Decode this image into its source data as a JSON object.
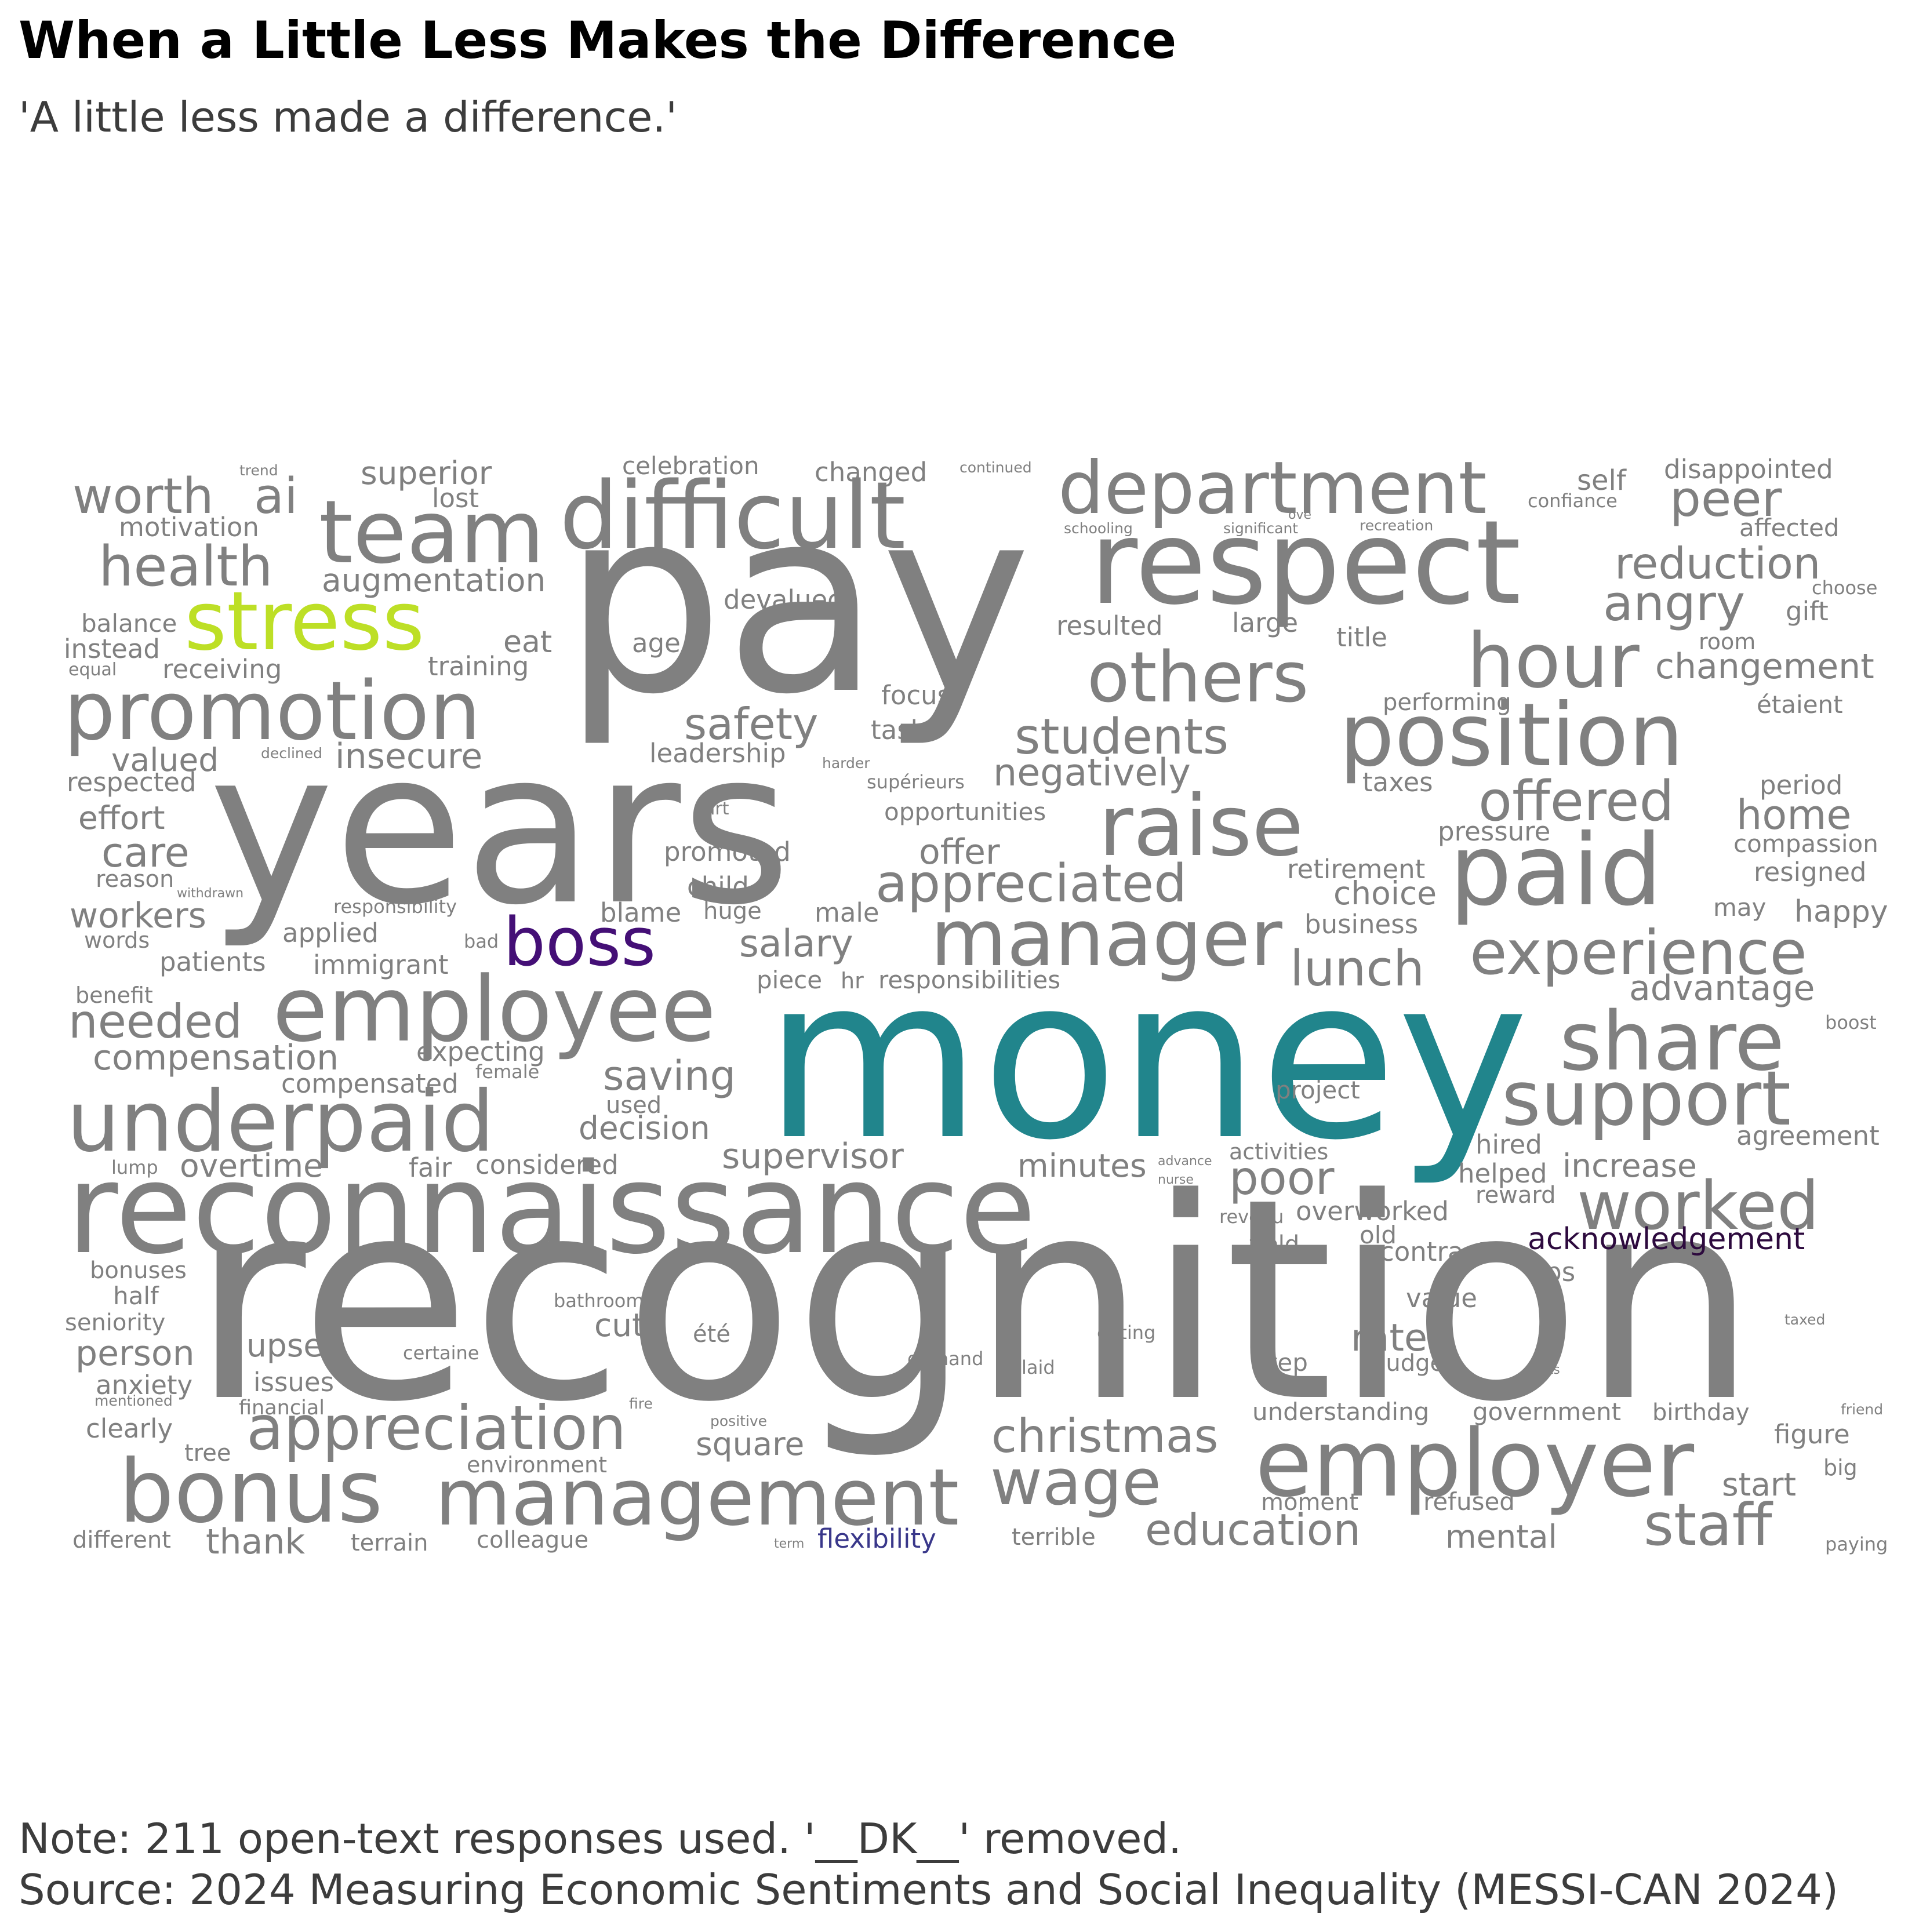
{
  "title": "When a Little Less Makes the Difference",
  "subtitle": "'A little less made a difference.'",
  "note": "Note: 211 open-text responses used. '__DK__' removed.",
  "source": "Source: 2024 Measuring Economic Sentiments and Social Inequality (MESSI-CAN 2024)",
  "chart_data": {
    "type": "wordcloud",
    "default_color": "#808080",
    "words": [
      {
        "text": "recognition",
        "weight": 100
      },
      {
        "text": "pay",
        "weight": 92
      },
      {
        "text": "years",
        "weight": 88
      },
      {
        "text": "money",
        "weight": 86,
        "color": "#21858c"
      },
      {
        "text": "reconnaissance",
        "weight": 54
      },
      {
        "text": "respect",
        "weight": 50
      },
      {
        "text": "difficult",
        "weight": 38
      },
      {
        "text": "employee",
        "weight": 40
      },
      {
        "text": "underpaid",
        "weight": 38
      },
      {
        "text": "position",
        "weight": 38
      },
      {
        "text": "paid",
        "weight": 44
      },
      {
        "text": "team",
        "weight": 36
      },
      {
        "text": "promotion",
        "weight": 36
      },
      {
        "text": "raise",
        "weight": 36
      },
      {
        "text": "manager",
        "weight": 34
      },
      {
        "text": "department",
        "weight": 32
      },
      {
        "text": "employer",
        "weight": 36
      },
      {
        "text": "management",
        "weight": 33
      },
      {
        "text": "bonus",
        "weight": 36
      },
      {
        "text": "support",
        "weight": 32
      },
      {
        "text": "share",
        "weight": 32
      },
      {
        "text": "others",
        "weight": 30
      },
      {
        "text": "hour",
        "weight": 30
      },
      {
        "text": "worked",
        "weight": 28
      },
      {
        "text": "experience",
        "weight": 26
      },
      {
        "text": "stress",
        "weight": 30,
        "color": "#bddf26"
      },
      {
        "text": "boss",
        "weight": 28,
        "color": "#440f76"
      },
      {
        "text": "appreciation",
        "weight": 27
      },
      {
        "text": "appreciated",
        "weight": 23
      },
      {
        "text": "wage",
        "weight": 26
      },
      {
        "text": "offered",
        "weight": 23
      },
      {
        "text": "health",
        "weight": 23
      },
      {
        "text": "staff",
        "weight": 23
      },
      {
        "text": "worth",
        "weight": 21
      },
      {
        "text": "needed",
        "weight": 21
      },
      {
        "text": "peer",
        "weight": 20
      },
      {
        "text": "angry",
        "weight": 20
      },
      {
        "text": "lunch",
        "weight": 21
      },
      {
        "text": "christmas",
        "weight": 20
      },
      {
        "text": "education",
        "weight": 20
      },
      {
        "text": "reduction",
        "weight": 18
      },
      {
        "text": "students",
        "weight": 20
      },
      {
        "text": "safety",
        "weight": 18
      },
      {
        "text": "poor",
        "weight": 20
      },
      {
        "text": "ai",
        "weight": 20
      },
      {
        "text": "home",
        "weight": 18
      },
      {
        "text": "compensation",
        "weight": 16
      },
      {
        "text": "saving",
        "weight": 17
      },
      {
        "text": "negatively",
        "weight": 16
      },
      {
        "text": "salary",
        "weight": 16
      },
      {
        "text": "supervisor",
        "weight": 15
      },
      {
        "text": "workers",
        "weight": 15
      },
      {
        "text": "care",
        "weight": 18
      },
      {
        "text": "advantage",
        "weight": 15
      },
      {
        "text": "changement",
        "weight": 15
      },
      {
        "text": "insecure",
        "weight": 16
      },
      {
        "text": "thank",
        "weight": 16
      },
      {
        "text": "offer",
        "weight": 15
      },
      {
        "text": "mental",
        "weight": 14
      },
      {
        "text": "augmentation",
        "weight": 14
      },
      {
        "text": "valued",
        "weight": 14
      },
      {
        "text": "effort",
        "weight": 13
      },
      {
        "text": "increase",
        "weight": 13
      },
      {
        "text": "decision",
        "weight": 13
      },
      {
        "text": "minutes",
        "weight": 13
      },
      {
        "text": "overtime",
        "weight": 13
      },
      {
        "text": "upset",
        "weight": 13
      },
      {
        "text": "person",
        "weight": 14
      },
      {
        "text": "rate",
        "weight": 15
      },
      {
        "text": "cut",
        "weight": 13
      },
      {
        "text": "square",
        "weight": 13
      },
      {
        "text": "superior",
        "weight": 13
      },
      {
        "text": "acknowledgement",
        "weight": 12,
        "color": "#2d0a3e"
      },
      {
        "text": "start",
        "weight": 13
      },
      {
        "text": "choice",
        "weight": 12
      },
      {
        "text": "self",
        "weight": 12
      },
      {
        "text": "figure",
        "weight": 11
      },
      {
        "text": "happy",
        "weight": 12
      },
      {
        "text": "disappointed",
        "weight": 11
      },
      {
        "text": "changed",
        "weight": 11
      },
      {
        "text": "celebration",
        "weight": 10
      },
      {
        "text": "lost",
        "weight": 11
      },
      {
        "text": "motivation",
        "weight": 11
      },
      {
        "text": "balance",
        "weight": 10
      },
      {
        "text": "instead",
        "weight": 11
      },
      {
        "text": "receiving",
        "weight": 11
      },
      {
        "text": "training",
        "weight": 11
      },
      {
        "text": "eat",
        "weight": 12
      },
      {
        "text": "devalued",
        "weight": 11
      },
      {
        "text": "age",
        "weight": 11
      },
      {
        "text": "focus",
        "weight": 11
      },
      {
        "text": "tasks",
        "weight": 11
      },
      {
        "text": "leadership",
        "weight": 11
      },
      {
        "text": "resulted",
        "weight": 11
      },
      {
        "text": "large",
        "weight": 11
      },
      {
        "text": "title",
        "weight": 11
      },
      {
        "text": "performing",
        "weight": 10
      },
      {
        "text": "taxes",
        "weight": 11
      },
      {
        "text": "pressure",
        "weight": 11
      },
      {
        "text": "retirement",
        "weight": 11
      },
      {
        "text": "business",
        "weight": 11
      },
      {
        "text": "period",
        "weight": 11
      },
      {
        "text": "compassion",
        "weight": 10
      },
      {
        "text": "resigned",
        "weight": 11
      },
      {
        "text": "may",
        "weight": 11
      },
      {
        "text": "affected",
        "weight": 10
      },
      {
        "text": "gift",
        "weight": 11
      },
      {
        "text": "room",
        "weight": 9
      },
      {
        "text": "étaient",
        "weight": 10
      },
      {
        "text": "opportunities",
        "weight": 10
      },
      {
        "text": "promoted",
        "weight": 10
      },
      {
        "text": "child",
        "weight": 10
      },
      {
        "text": "huge",
        "weight": 10
      },
      {
        "text": "blame",
        "weight": 11
      },
      {
        "text": "male",
        "weight": 11
      },
      {
        "text": "responsibilities",
        "weight": 10
      },
      {
        "text": "piece",
        "weight": 10
      },
      {
        "text": "hr",
        "weight": 9
      },
      {
        "text": "applied",
        "weight": 11
      },
      {
        "text": "immigrant",
        "weight": 11
      },
      {
        "text": "patients",
        "weight": 11
      },
      {
        "text": "respected",
        "weight": 10
      },
      {
        "text": "reason",
        "weight": 9
      },
      {
        "text": "words",
        "weight": 9
      },
      {
        "text": "benefit",
        "weight": 9
      },
      {
        "text": "expecting",
        "weight": 10
      },
      {
        "text": "compensated",
        "weight": 10
      },
      {
        "text": "female",
        "weight": 8
      },
      {
        "text": "used",
        "weight": 9
      },
      {
        "text": "project",
        "weight": 10
      },
      {
        "text": "hired",
        "weight": 10
      },
      {
        "text": "helped",
        "weight": 10
      },
      {
        "text": "activities",
        "weight": 10
      },
      {
        "text": "overworked",
        "weight": 10
      },
      {
        "text": "reward",
        "weight": 9
      },
      {
        "text": "agreement",
        "weight": 10
      },
      {
        "text": "boost",
        "weight": 8
      },
      {
        "text": "considered",
        "weight": 10
      },
      {
        "text": "fair",
        "weight": 10
      },
      {
        "text": "lump",
        "weight": 8
      },
      {
        "text": "old",
        "weight": 9
      },
      {
        "text": "field",
        "weight": 10
      },
      {
        "text": "contract",
        "weight": 10
      },
      {
        "text": "tips",
        "weight": 10
      },
      {
        "text": "value",
        "weight": 10
      },
      {
        "text": "revenu",
        "weight": 8
      },
      {
        "text": "bonuses",
        "weight": 10
      },
      {
        "text": "half",
        "weight": 10
      },
      {
        "text": "seniority",
        "weight": 10
      },
      {
        "text": "anxiety",
        "weight": 11
      },
      {
        "text": "issues",
        "weight": 11
      },
      {
        "text": "mentioned",
        "weight": 6
      },
      {
        "text": "financial",
        "weight": 9
      },
      {
        "text": "clearly",
        "weight": 10
      },
      {
        "text": "tree",
        "weight": 10
      },
      {
        "text": "environment",
        "weight": 9
      },
      {
        "text": "bathroom",
        "weight": 8
      },
      {
        "text": "été",
        "weight": 10
      },
      {
        "text": "certaine",
        "weight": 8
      },
      {
        "text": "demand",
        "weight": 8
      },
      {
        "text": "laid",
        "weight": 8
      },
      {
        "text": "eating",
        "weight": 8
      },
      {
        "text": "step",
        "weight": 10
      },
      {
        "text": "budget",
        "weight": 10
      },
      {
        "text": "understanding",
        "weight": 10
      },
      {
        "text": "government",
        "weight": 10
      },
      {
        "text": "birthday",
        "weight": 10
      },
      {
        "text": "fire",
        "weight": 6
      },
      {
        "text": "positive",
        "weight": 6
      },
      {
        "text": "moment",
        "weight": 10
      },
      {
        "text": "refused",
        "weight": 10
      },
      {
        "text": "big",
        "weight": 9
      },
      {
        "text": "different",
        "weight": 9
      },
      {
        "text": "terrain",
        "weight": 9
      },
      {
        "text": "colleague",
        "weight": 9
      },
      {
        "text": "term",
        "weight": 5
      },
      {
        "text": "flexibility",
        "weight": 10,
        "color": "#39378a"
      },
      {
        "text": "terrible",
        "weight": 9
      },
      {
        "text": "paying",
        "weight": 8
      },
      {
        "text": "taxed",
        "weight": 6
      },
      {
        "text": "perks",
        "weight": 5
      },
      {
        "text": "friend",
        "weight": 6
      },
      {
        "text": "trend",
        "weight": 6
      },
      {
        "text": "continued",
        "weight": 6
      },
      {
        "text": "schooling",
        "weight": 6
      },
      {
        "text": "significant",
        "weight": 6
      },
      {
        "text": "ove",
        "weight": 5
      },
      {
        "text": "recreation",
        "weight": 6
      },
      {
        "text": "confiance",
        "weight": 8
      },
      {
        "text": "choose",
        "weight": 8
      },
      {
        "text": "equal",
        "weight": 7
      },
      {
        "text": "declined",
        "weight": 6
      },
      {
        "text": "harder",
        "weight": 6
      },
      {
        "text": "supérieurs",
        "weight": 7
      },
      {
        "text": "art",
        "weight": 7
      },
      {
        "text": "withdrawn",
        "weight": 5
      },
      {
        "text": "responsibility",
        "weight": 8
      },
      {
        "text": "bad",
        "weight": 7
      },
      {
        "text": "advance",
        "weight": 5
      },
      {
        "text": "nurse",
        "weight": 5
      }
    ]
  }
}
